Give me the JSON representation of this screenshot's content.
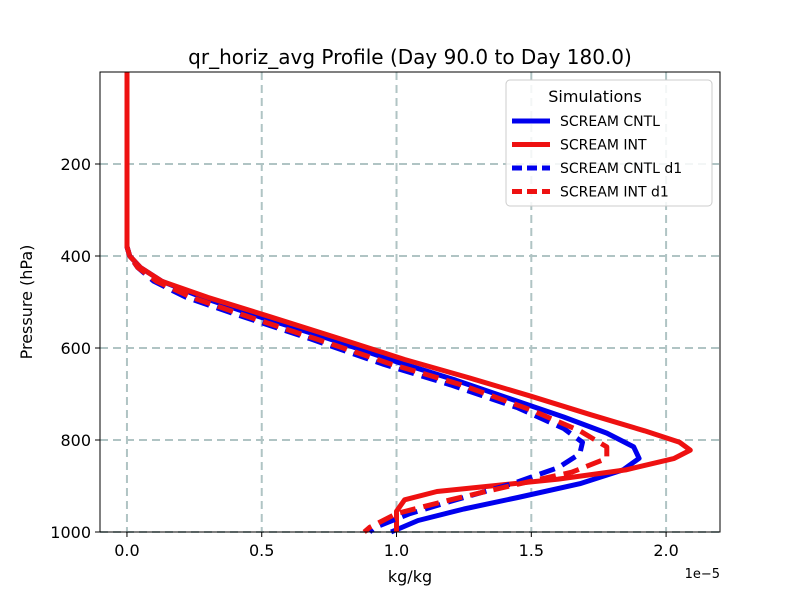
{
  "chart_data": {
    "type": "line",
    "title": "qr_horiz_avg Profile (Day 90.0 to Day 180.0)",
    "xlabel": "kg/kg",
    "ylabel": "Pressure (hPa)",
    "x_offset_label": "1e−5",
    "x_scale": 1e-05,
    "xlim": [
      -0.1,
      2.2
    ],
    "ylim": [
      1000,
      0
    ],
    "ylim_display_top": 0,
    "xticks": [
      0.0,
      0.5,
      1.0,
      1.5,
      2.0
    ],
    "xtick_labels": [
      "0.0",
      "0.5",
      "1.0",
      "1.5",
      "2.0"
    ],
    "yticks": [
      200,
      400,
      600,
      800,
      1000
    ],
    "ytick_labels": [
      "200",
      "400",
      "600",
      "800",
      "1000"
    ],
    "grid": true,
    "legend": {
      "title": "Simulations",
      "position": "top-right"
    },
    "series": [
      {
        "name": "SCREAM CNTL",
        "color": "#0000ee",
        "dash": "solid",
        "points": [
          [
            0.0,
            0
          ],
          [
            0.0,
            100
          ],
          [
            0.0,
            200
          ],
          [
            0.0,
            300
          ],
          [
            0.0,
            380
          ],
          [
            0.01,
            400
          ],
          [
            0.05,
            425
          ],
          [
            0.13,
            455
          ],
          [
            0.28,
            490
          ],
          [
            0.48,
            530
          ],
          [
            0.75,
            580
          ],
          [
            1.0,
            630
          ],
          [
            1.22,
            670
          ],
          [
            1.42,
            710
          ],
          [
            1.62,
            750
          ],
          [
            1.78,
            785
          ],
          [
            1.88,
            815
          ],
          [
            1.9,
            840
          ],
          [
            1.84,
            865
          ],
          [
            1.68,
            895
          ],
          [
            1.45,
            925
          ],
          [
            1.25,
            950
          ],
          [
            1.08,
            975
          ],
          [
            0.98,
            1000
          ]
        ]
      },
      {
        "name": "SCREAM INT",
        "color": "#ee1111",
        "dash": "solid",
        "points": [
          [
            0.0,
            0
          ],
          [
            0.0,
            100
          ],
          [
            0.0,
            200
          ],
          [
            0.0,
            300
          ],
          [
            0.0,
            380
          ],
          [
            0.01,
            400
          ],
          [
            0.05,
            425
          ],
          [
            0.13,
            455
          ],
          [
            0.3,
            490
          ],
          [
            0.52,
            530
          ],
          [
            0.78,
            578
          ],
          [
            1.03,
            625
          ],
          [
            1.27,
            665
          ],
          [
            1.5,
            705
          ],
          [
            1.72,
            745
          ],
          [
            1.92,
            780
          ],
          [
            2.05,
            805
          ],
          [
            2.09,
            822
          ],
          [
            2.03,
            840
          ],
          [
            1.85,
            865
          ],
          [
            1.6,
            885
          ],
          [
            1.35,
            900
          ],
          [
            1.15,
            912
          ],
          [
            1.03,
            930
          ],
          [
            1.0,
            955
          ],
          [
            1.0,
            1000
          ]
        ]
      },
      {
        "name": "SCREAM CNTL d1",
        "color": "#0000ee",
        "dash": "dashed",
        "points": [
          [
            0.0,
            0
          ],
          [
            0.0,
            100
          ],
          [
            0.0,
            200
          ],
          [
            0.0,
            300
          ],
          [
            0.0,
            380
          ],
          [
            0.01,
            400
          ],
          [
            0.04,
            425
          ],
          [
            0.1,
            455
          ],
          [
            0.22,
            490
          ],
          [
            0.42,
            530
          ],
          [
            0.68,
            580
          ],
          [
            0.95,
            635
          ],
          [
            1.2,
            680
          ],
          [
            1.45,
            730
          ],
          [
            1.62,
            775
          ],
          [
            1.69,
            805
          ],
          [
            1.68,
            830
          ],
          [
            1.6,
            860
          ],
          [
            1.43,
            895
          ],
          [
            1.22,
            930
          ],
          [
            1.05,
            960
          ],
          [
            0.92,
            990
          ],
          [
            0.9,
            1000
          ]
        ]
      },
      {
        "name": "SCREAM INT d1",
        "color": "#ee1111",
        "dash": "dashed",
        "points": [
          [
            0.0,
            0
          ],
          [
            0.0,
            100
          ],
          [
            0.0,
            200
          ],
          [
            0.0,
            300
          ],
          [
            0.0,
            380
          ],
          [
            0.01,
            400
          ],
          [
            0.04,
            425
          ],
          [
            0.11,
            455
          ],
          [
            0.24,
            490
          ],
          [
            0.44,
            530
          ],
          [
            0.7,
            580
          ],
          [
            0.98,
            635
          ],
          [
            1.24,
            680
          ],
          [
            1.5,
            735
          ],
          [
            1.68,
            780
          ],
          [
            1.78,
            815
          ],
          [
            1.78,
            840
          ],
          [
            1.65,
            870
          ],
          [
            1.42,
            900
          ],
          [
            1.2,
            930
          ],
          [
            1.0,
            960
          ],
          [
            0.9,
            990
          ],
          [
            0.88,
            1000
          ]
        ]
      }
    ]
  }
}
